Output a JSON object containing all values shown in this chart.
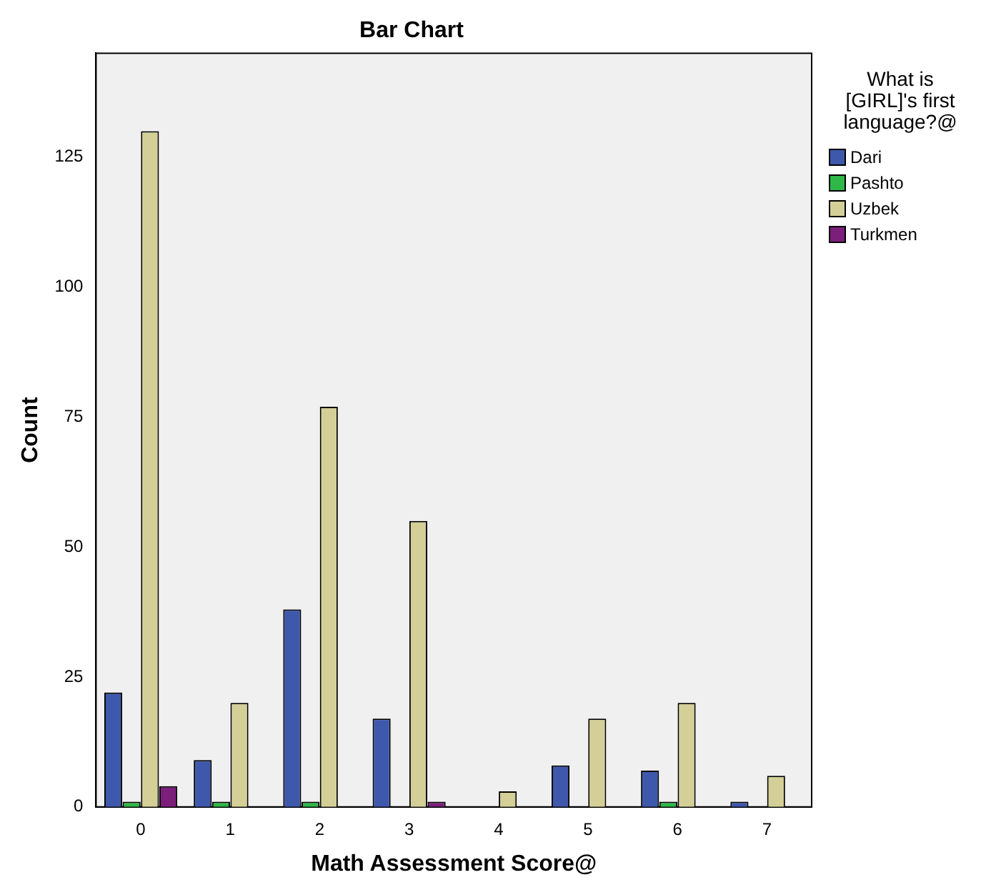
{
  "chart_data": {
    "type": "bar",
    "title": "Bar Chart",
    "xlabel": "Math Assessment Score@",
    "ylabel": "Count",
    "legend_title": "What is [GIRL]'s first language?@",
    "categories": [
      "0",
      "1",
      "2",
      "3",
      "4",
      "5",
      "6",
      "7"
    ],
    "series": [
      {
        "name": "Dari",
        "color": "#3e58ac",
        "values": [
          22,
          9,
          38,
          17,
          null,
          8,
          7,
          1
        ]
      },
      {
        "name": "Pashto",
        "color": "#2eb848",
        "values": [
          1,
          1,
          1,
          null,
          null,
          null,
          1,
          null
        ]
      },
      {
        "name": "Uzbek",
        "color": "#d4cf97",
        "values": [
          130,
          20,
          77,
          55,
          3,
          17,
          20,
          6
        ]
      },
      {
        "name": "Turkmen",
        "color": "#7b1f7a",
        "values": [
          4,
          null,
          null,
          1,
          null,
          null,
          null,
          null
        ]
      }
    ],
    "ylim": [
      0,
      145
    ],
    "yticks": [
      0,
      25,
      50,
      75,
      100,
      125
    ],
    "grid": false,
    "legend": "right"
  }
}
